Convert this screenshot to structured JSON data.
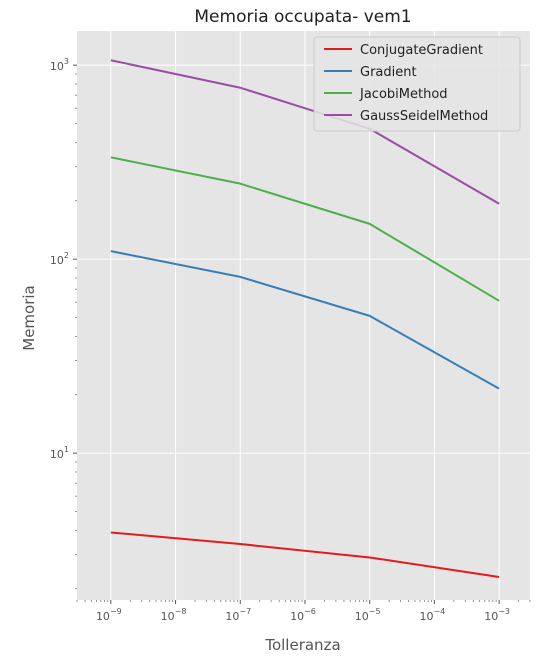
{
  "chart_data": {
    "type": "line",
    "title": "Memoria occupata- vem1",
    "xlabel": "Tolleranza",
    "ylabel": "Memoria",
    "x_scale": "log",
    "y_scale": "log",
    "x": [
      1e-09,
      1e-07,
      1e-05,
      0.001
    ],
    "xlim": [
      3e-10,
      0.003
    ],
    "ylim": [
      1.75,
      1500
    ],
    "x_ticks": [
      {
        "value": 1e-09,
        "base": "10",
        "exp": "−9"
      },
      {
        "value": 1e-08,
        "base": "10",
        "exp": "−8"
      },
      {
        "value": 1e-07,
        "base": "10",
        "exp": "−7"
      },
      {
        "value": 1e-06,
        "base": "10",
        "exp": "−6"
      },
      {
        "value": 1e-05,
        "base": "10",
        "exp": "−5"
      },
      {
        "value": 0.0001,
        "base": "10",
        "exp": "−4"
      },
      {
        "value": 0.001,
        "base": "10",
        "exp": "−3"
      }
    ],
    "y_ticks": [
      {
        "value": 10,
        "base": "10",
        "exp": "1"
      },
      {
        "value": 100,
        "base": "10",
        "exp": "2"
      },
      {
        "value": 1000,
        "base": "10",
        "exp": "3"
      }
    ],
    "grid": true,
    "legend_position": "top-right",
    "series": [
      {
        "name": "ConjugateGradient",
        "color": "#e41a1c",
        "values": [
          3.9,
          3.4,
          2.9,
          2.3
        ]
      },
      {
        "name": "Gradient",
        "color": "#377eb8",
        "values": [
          110,
          81,
          51,
          21.5
        ]
      },
      {
        "name": "JacobiMethod",
        "color": "#4daf4a",
        "values": [
          335,
          245,
          152,
          61
        ]
      },
      {
        "name": "GaussSeidelMethod",
        "color": "#984ea3",
        "values": [
          1060,
          765,
          470,
          193
        ]
      }
    ],
    "colors": {
      "plot_background": "#e5e5e5",
      "grid": "#ffffff",
      "legend_background": "#e5e5e5"
    }
  }
}
